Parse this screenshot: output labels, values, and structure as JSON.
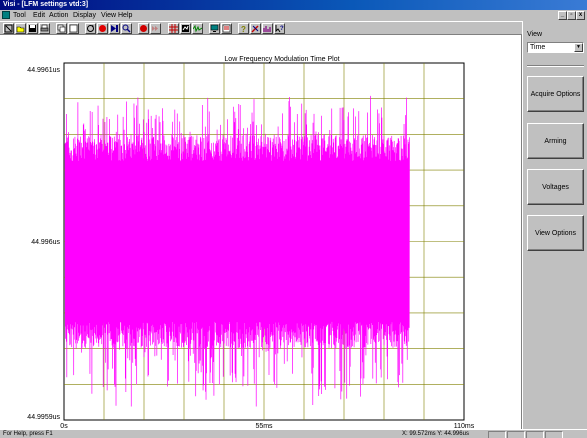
{
  "window": {
    "title": "Visi - [LFM settings vtd:3]"
  },
  "menu": {
    "items": [
      "Tool",
      "Edit",
      "Action",
      "Display",
      "View",
      "Help"
    ]
  },
  "mdi_buttons": {
    "minimize": "_",
    "restore": "▫",
    "close": "x"
  },
  "toolbar": {
    "buttons": [
      "zoom-fit-icon",
      "open-icon",
      "save-icon",
      "print-icon",
      "copy-icon",
      "blank-icon",
      "loop-icon",
      "record-icon",
      "play-step-icon",
      "search-icon",
      "stop-icon",
      "fast-forward-icon",
      "grid-icon",
      "cursor-icon",
      "waveform-icon",
      "monitor-icon",
      "data-icon",
      "help-icon",
      "tools-icon",
      "statistics-icon",
      "context-help-icon"
    ]
  },
  "plot": {
    "title": "Low Frequency Modulation Time Plot",
    "trace_color": "#ff00ff",
    "grid_color": "#808000"
  },
  "chart_data": {
    "type": "line",
    "title": "Low Frequency Modulation Time Plot",
    "xlabel": "",
    "ylabel": "",
    "x_tick_labels": [
      "0s",
      "55ms",
      "110ms"
    ],
    "y_tick_labels": [
      "44.9961us",
      "44.996us",
      "44.9959us"
    ],
    "xlim": [
      0,
      110
    ],
    "x_unit": "ms",
    "ylim": [
      44.9959,
      44.9961
    ],
    "y_unit": "us",
    "data_extent_x": [
      0.3,
      95
    ],
    "series": [
      {
        "band_center": 44.996,
        "dense_band": [
          44.99594,
          44.99606
        ],
        "spike_extent": [
          44.995905,
          44.996085
        ]
      }
    ],
    "grid": true
  },
  "right_panel": {
    "view_label": "View",
    "view_select_value": "Time",
    "buttons": [
      "Acquire Options",
      "Arming",
      "Voltages",
      "View Options"
    ]
  },
  "status": {
    "left": "For Help, press F1",
    "right": "X: 99.572ms Y: 44.996us"
  }
}
